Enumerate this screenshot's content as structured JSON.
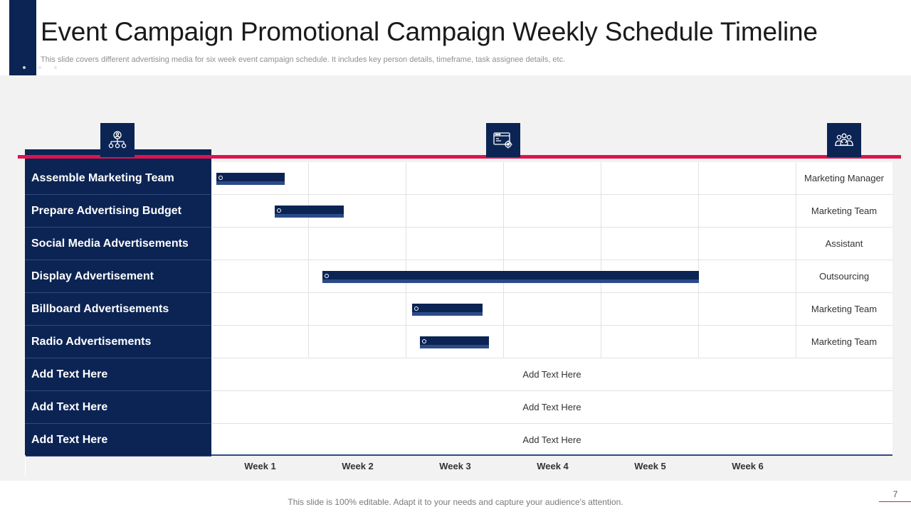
{
  "header": {
    "title": "Event Campaign Promotional Campaign Weekly Schedule Timeline",
    "subtitle": "This slide covers different advertising media for six week event campaign schedule. It includes key person details, timeframe, task assignee details, etc."
  },
  "icons": [
    "team-network-icon",
    "browser-settings-icon",
    "people-group-icon"
  ],
  "colors": {
    "navy": "#0c2454",
    "accent": "#e0124c",
    "bar_highlight": "#2b4b87"
  },
  "weeks": [
    "Week 1",
    "Week 2",
    "Week 3",
    "Week 4",
    "Week 5",
    "Week 6"
  ],
  "tasks": [
    {
      "label": "Assemble Marketing Team",
      "assignee": "Marketing Manager",
      "start_week": 0.05,
      "end_week": 0.75
    },
    {
      "label": "Prepare Advertising Budget",
      "assignee": "Marketing Team",
      "start_week": 0.65,
      "end_week": 1.36
    },
    {
      "label": "Social Media Advertisements",
      "assignee": "Assistant",
      "start_week": null,
      "end_week": null
    },
    {
      "label": "Display Advertisement",
      "assignee": "Outsourcing",
      "start_week": 1.14,
      "end_week": 5.0
    },
    {
      "label": "Billboard Advertisements",
      "assignee": "Marketing Team",
      "start_week": 2.06,
      "end_week": 2.78
    },
    {
      "label": "Radio Advertisements",
      "assignee": "Marketing Team",
      "start_week": 2.14,
      "end_week": 2.85
    }
  ],
  "placeholders": [
    {
      "label": "Add Text Here",
      "text": "Add Text Here"
    },
    {
      "label": "Add Text Here",
      "text": "Add Text Here"
    },
    {
      "label": "Add Text Here",
      "text": "Add Text Here"
    }
  ],
  "footer": {
    "text": "This slide is 100% editable. Adapt it to your needs and capture your audience's attention.",
    "page_number": "7"
  }
}
